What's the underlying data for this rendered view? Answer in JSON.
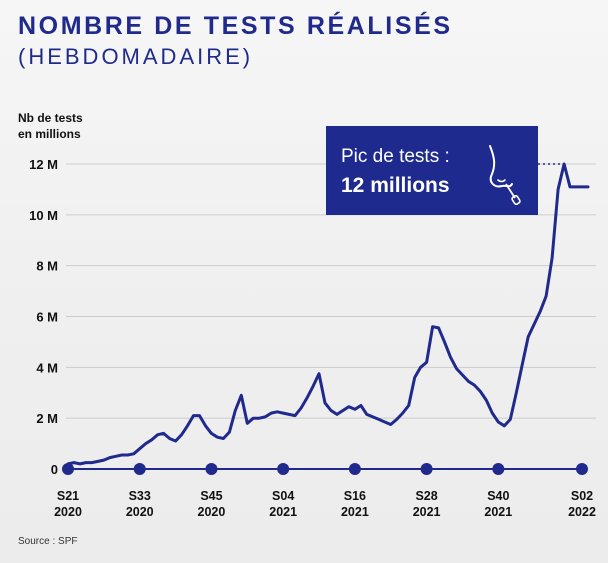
{
  "title": "NOMBRE DE TESTS RÉALISÉS",
  "subtitle": "(HEBDOMADAIRE)",
  "ylabel_line1": "Nb de tests",
  "ylabel_line2": "en millions",
  "source": "Source : SPF",
  "callout": {
    "line1": "Pic de tests :",
    "line2": "12 millions",
    "icon": "nose-swab-icon"
  },
  "colors": {
    "line": "#1f2a8c",
    "callout_bg": "#1e2a8e",
    "grid": "#cccccc"
  },
  "chart_data": {
    "type": "line",
    "title": "NOMBRE DE TESTS RÉALISÉS",
    "subtitle": "(HEBDOMADAIRE)",
    "ylabel": "Nb de tests en millions",
    "xlabel": "",
    "ylim": [
      0,
      12
    ],
    "yticks": [
      0,
      2,
      4,
      6,
      8,
      10,
      12
    ],
    "ytick_labels": [
      "0",
      "2 M",
      "4 M",
      "6 M",
      "8 M",
      "10 M",
      "12 M"
    ],
    "grid": true,
    "x_ticks": [
      {
        "week": 0,
        "l1": "S21",
        "l2": "2020"
      },
      {
        "week": 12,
        "l1": "S33",
        "l2": "2020"
      },
      {
        "week": 24,
        "l1": "S45",
        "l2": "2020"
      },
      {
        "week": 36,
        "l1": "S04",
        "l2": "2021"
      },
      {
        "week": 48,
        "l1": "S16",
        "l2": "2021"
      },
      {
        "week": 60,
        "l1": "S28",
        "l2": "2021"
      },
      {
        "week": 72,
        "l1": "S40",
        "l2": "2021"
      },
      {
        "week": 86,
        "l1": "S02",
        "l2": "2022"
      }
    ],
    "series": [
      {
        "x": [
          0,
          1,
          2,
          3,
          4,
          5,
          6,
          7,
          8,
          9,
          10,
          11,
          12,
          13,
          14,
          15,
          16,
          17,
          18,
          19,
          20,
          21,
          22,
          23,
          24,
          25,
          26,
          27,
          28,
          29,
          30,
          31,
          32,
          33,
          34,
          35,
          36,
          37,
          38,
          39,
          40,
          41,
          42,
          43,
          44,
          45,
          46,
          47,
          48,
          49,
          50,
          51,
          52,
          53,
          54,
          55,
          56,
          57,
          58,
          59,
          60,
          61,
          62,
          63,
          64,
          65,
          66,
          67,
          68,
          69,
          70,
          71,
          72,
          73,
          74,
          75,
          76,
          77,
          78,
          79,
          80,
          81,
          82,
          83,
          84,
          85,
          86,
          87
        ],
        "values": [
          0.2,
          0.25,
          0.2,
          0.25,
          0.25,
          0.3,
          0.35,
          0.45,
          0.5,
          0.55,
          0.55,
          0.6,
          0.8,
          1.0,
          1.15,
          1.35,
          1.4,
          1.2,
          1.1,
          1.35,
          1.7,
          2.1,
          2.1,
          1.7,
          1.4,
          1.25,
          1.2,
          1.45,
          2.3,
          2.9,
          1.8,
          2.0,
          2.0,
          2.05,
          2.2,
          2.25,
          2.2,
          2.15,
          2.1,
          2.4,
          2.8,
          3.25,
          3.75,
          2.6,
          2.3,
          2.15,
          2.3,
          2.45,
          2.35,
          2.5,
          2.15,
          2.05,
          1.95,
          1.85,
          1.75,
          1.95,
          2.2,
          2.5,
          3.6,
          4.0,
          4.2,
          5.6,
          5.55,
          5.0,
          4.4,
          3.95,
          3.7,
          3.45,
          3.3,
          3.05,
          2.7,
          2.2,
          1.85,
          1.7,
          1.95,
          3.0,
          4.1,
          5.2,
          5.7,
          6.2,
          6.8,
          8.3,
          11.0,
          12.0,
          11.1,
          11.1,
          11.1,
          11.1
        ]
      }
    ]
  }
}
